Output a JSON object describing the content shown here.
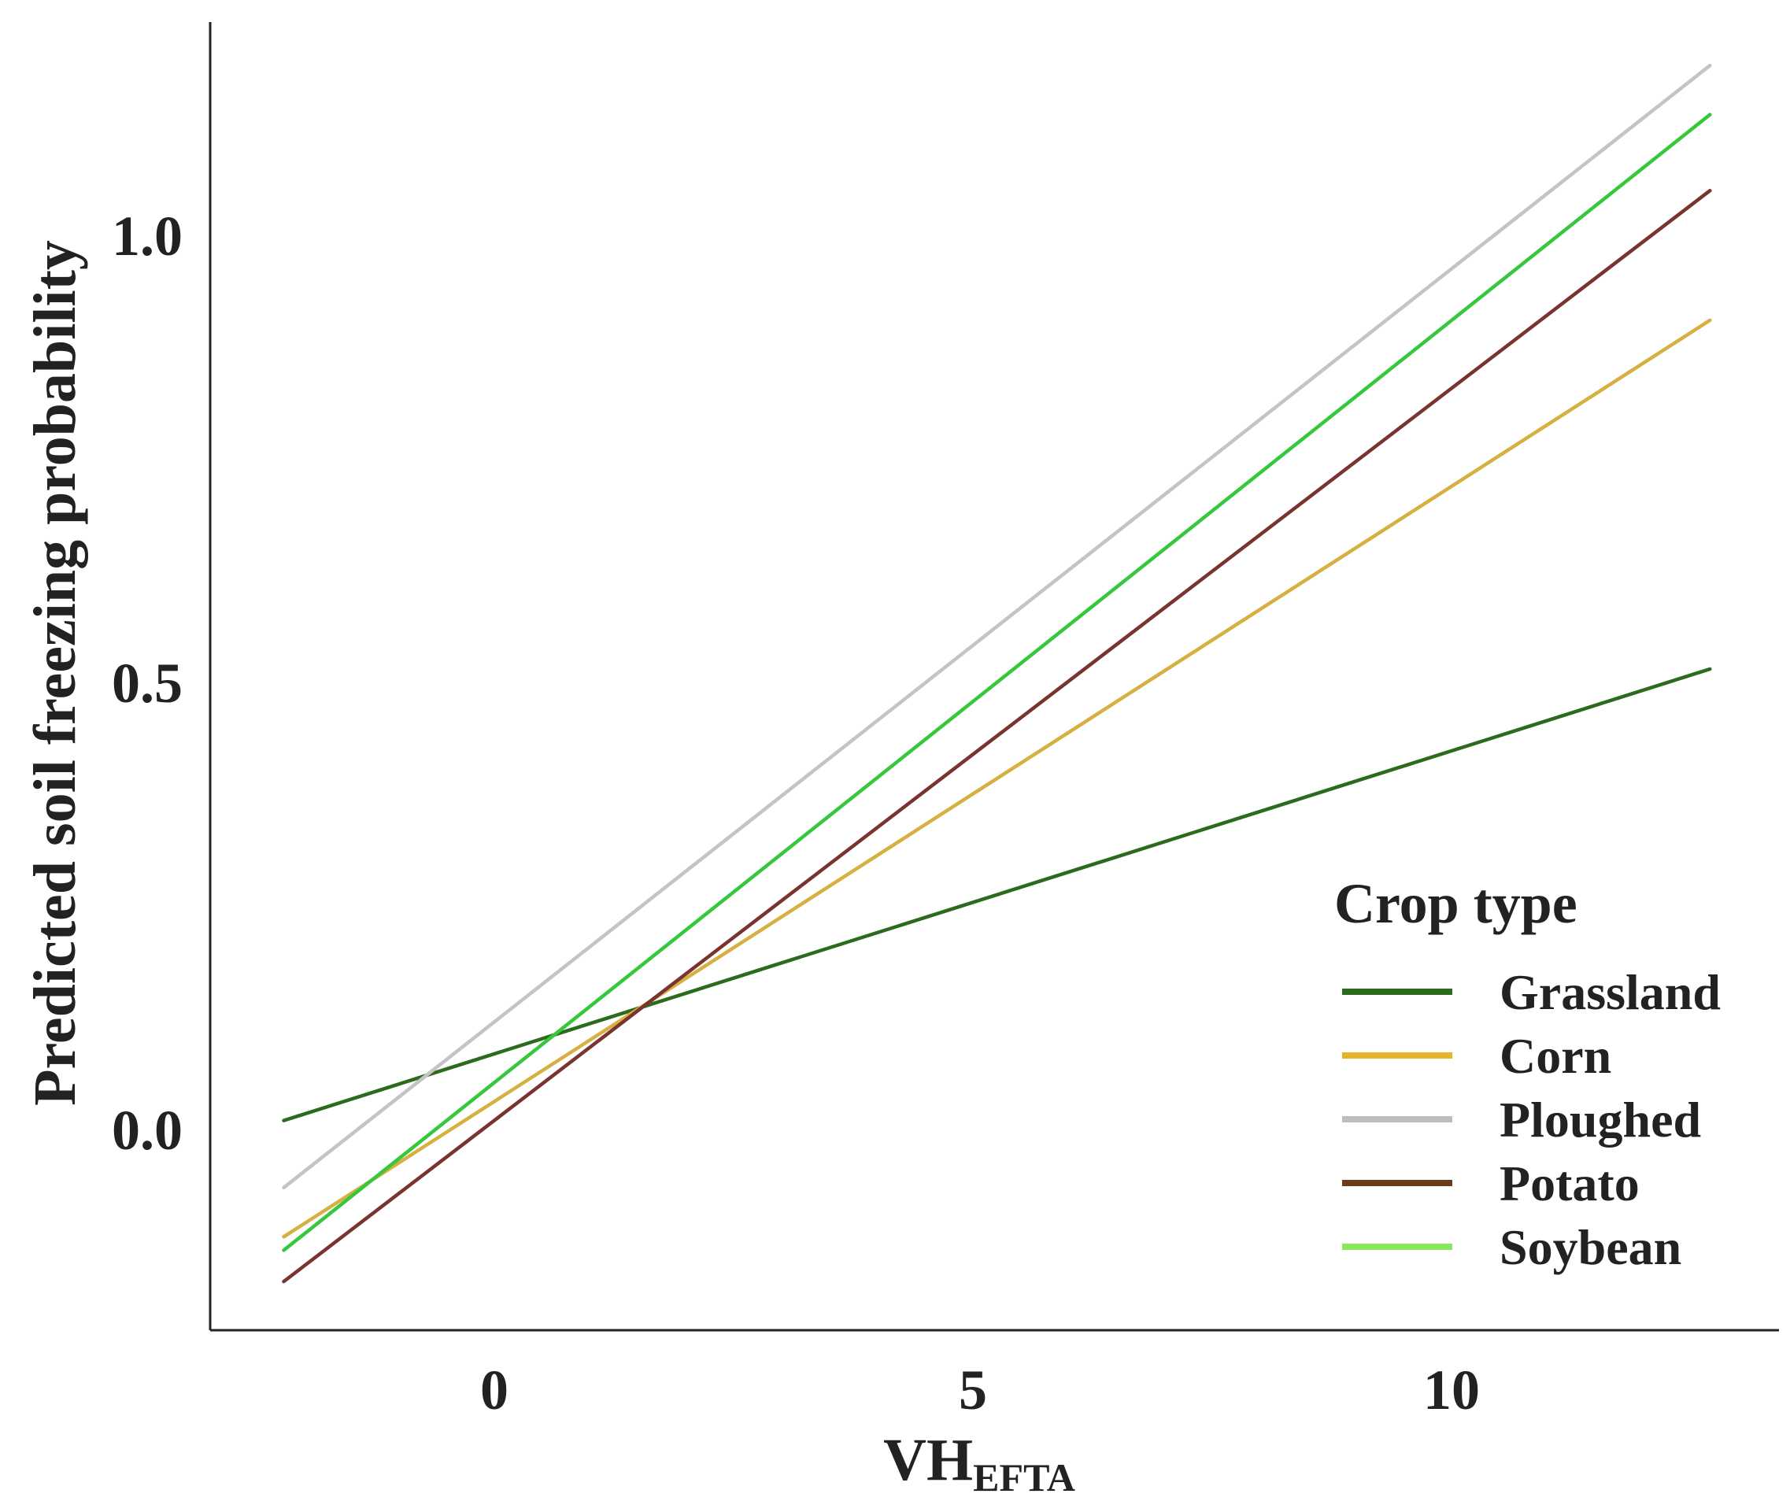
{
  "chart_data": {
    "type": "line",
    "xlabel_main": "VH",
    "xlabel_sub": "EFTA",
    "ylabel": "Predicted soil freezing probability",
    "xlim": [
      -3,
      13.5
    ],
    "ylim": [
      -0.22,
      1.25
    ],
    "x_ticks": [
      0,
      5,
      10
    ],
    "x_tick_labels": [
      "0",
      "5",
      "10"
    ],
    "y_ticks": [
      0.0,
      0.5,
      1.0
    ],
    "y_tick_labels": [
      "0.0",
      "0.5",
      "1.0"
    ],
    "grid": false,
    "legend": {
      "title": "Crop type",
      "position": "bottom-right"
    },
    "series": [
      {
        "name": "Grassland",
        "color": "#2a6b1e",
        "legend_color": "#2a6b1e",
        "x": [
          -2.2,
          12.7
        ],
        "y": [
          0.01,
          0.515
        ]
      },
      {
        "name": "Corn",
        "color": "#d7b042",
        "legend_color": "#e7b428",
        "x": [
          -2.2,
          12.7
        ],
        "y": [
          -0.12,
          0.905
        ]
      },
      {
        "name": "Ploughed",
        "color": "#c4c4c4",
        "legend_color": "#bdbdbd",
        "x": [
          -2.2,
          12.7
        ],
        "y": [
          -0.065,
          1.19
        ]
      },
      {
        "name": "Potato",
        "color": "#7a3430",
        "legend_color": "#6b3b1c",
        "x": [
          -2.2,
          12.7
        ],
        "y": [
          -0.17,
          1.05
        ]
      },
      {
        "name": "Soybean",
        "color": "#35c83d",
        "legend_color": "#8ce65a",
        "x": [
          -2.2,
          12.7
        ],
        "y": [
          -0.135,
          1.135
        ]
      }
    ]
  }
}
